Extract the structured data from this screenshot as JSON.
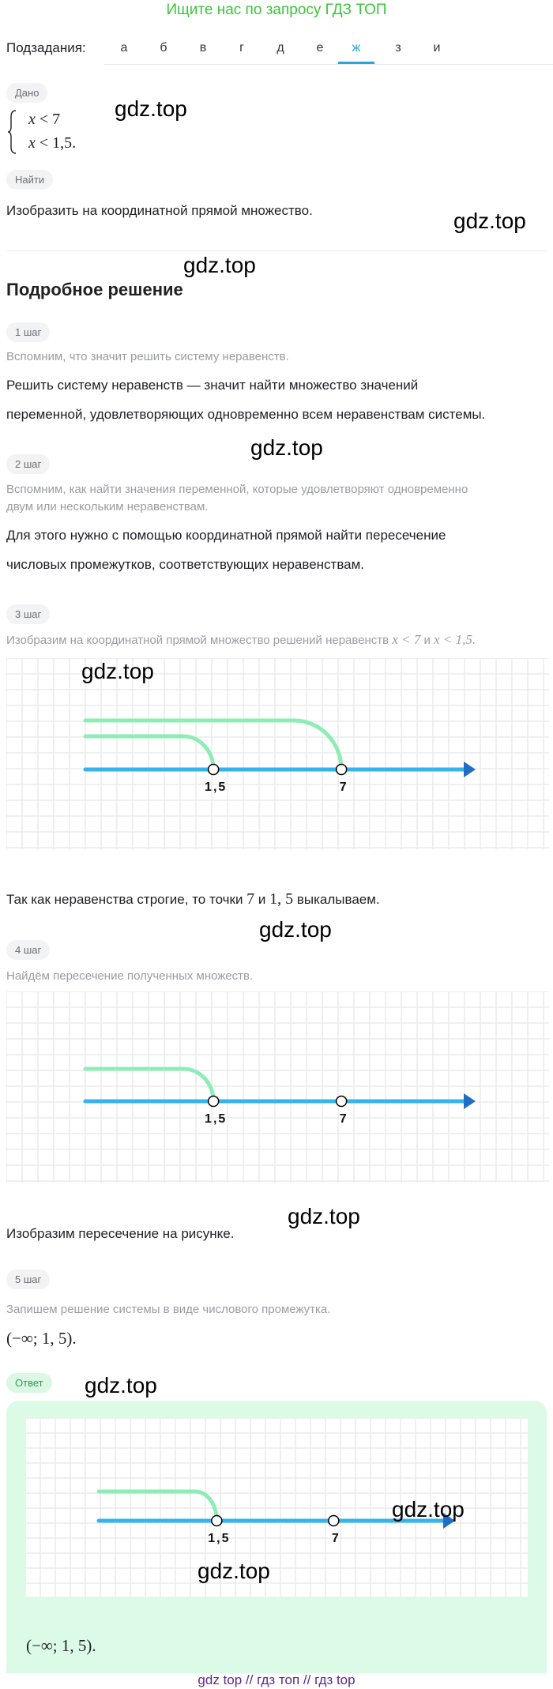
{
  "banner": "Ищите нас по запросу ГДЗ ТОП",
  "subtasks": {
    "label": "Подзадания:",
    "tabs": [
      "а",
      "б",
      "в",
      "г",
      "д",
      "е",
      "ж",
      "з",
      "и"
    ],
    "active": "ж"
  },
  "given": {
    "badge": "Дано",
    "system": [
      {
        "var": "x",
        "rel": "<",
        "value": "7"
      },
      {
        "var": "x",
        "rel": "<",
        "value": "1,5."
      }
    ]
  },
  "find": {
    "badge": "Найти",
    "text": "Изобразить на координатной прямой множество."
  },
  "solution": {
    "title": "Подробное решение",
    "steps": [
      {
        "badge": "1 шаг",
        "hint": "Вспомним, что значит решить систему неравенств.",
        "lines": [
          "Решить систему неравенств — значит найти множество значений",
          "переменной, удовлетворяющих одновременно всем неравенствам системы."
        ]
      },
      {
        "badge": "2 шаг",
        "hint": [
          "Вспомним, как найти значения переменной, которые удовлетворяют одновременно",
          "двум или нескольким неравенствам."
        ],
        "lines": [
          "Для этого нужно с помощью координатной прямой найти пересечение",
          "числовых промежутков, соответствующих неравенствам."
        ]
      },
      {
        "badge": "3 шаг",
        "hint_prefix": "Изобразим на координатной прямой множество решений неравенств ",
        "hint_m1": "x < 7",
        "hint_and": " и ",
        "hint_m2": "x < 1,5.",
        "after_prefix": "Так как неравенства строгие, то точки ",
        "after_m1": "7",
        "after_and": " и ",
        "after_m2": "1, 5",
        "after_suffix": " выкалываем."
      },
      {
        "badge": "4 шаг",
        "hint": "Найдём пересечение полученных множеств.",
        "after": "Изобразим пересечение на рисунке."
      },
      {
        "badge": "5 шаг",
        "hint": "Запишем решение системы в виде числового промежутка.",
        "result": "(−∞;  1, 5)."
      }
    ]
  },
  "answer": {
    "badge": "Ответ",
    "result": "(−∞;  1, 5)."
  },
  "chart_data": [
    {
      "type": "number-line",
      "points": [
        {
          "value": 1.5,
          "label": "1,5",
          "open": true
        },
        {
          "value": 7,
          "label": "7",
          "open": true
        }
      ],
      "rays": [
        {
          "direction": "left",
          "bound": 7
        },
        {
          "direction": "left",
          "bound": 1.5
        }
      ],
      "grid": true
    },
    {
      "type": "number-line",
      "points": [
        {
          "value": 1.5,
          "label": "1,5",
          "open": true
        },
        {
          "value": 7,
          "label": "7",
          "open": true
        }
      ],
      "rays": [
        {
          "direction": "left",
          "bound": 1.5
        }
      ],
      "grid": true
    },
    {
      "type": "number-line",
      "points": [
        {
          "value": 1.5,
          "label": "1,5",
          "open": true
        },
        {
          "value": 7,
          "label": "7",
          "open": true
        }
      ],
      "rays": [
        {
          "direction": "left",
          "bound": 1.5
        }
      ],
      "grid": true
    }
  ],
  "colors": {
    "axis": "#35b3ee",
    "arrow": "#1e6fc4",
    "shade": "#8eecb5",
    "banner": "#3cc43c",
    "active_tab": "#2aa5dc",
    "answer_bg": "#dcfbe6"
  },
  "watermark": "gdz.top",
  "footer": "gdz top  //  гдз топ  //  гдз top"
}
